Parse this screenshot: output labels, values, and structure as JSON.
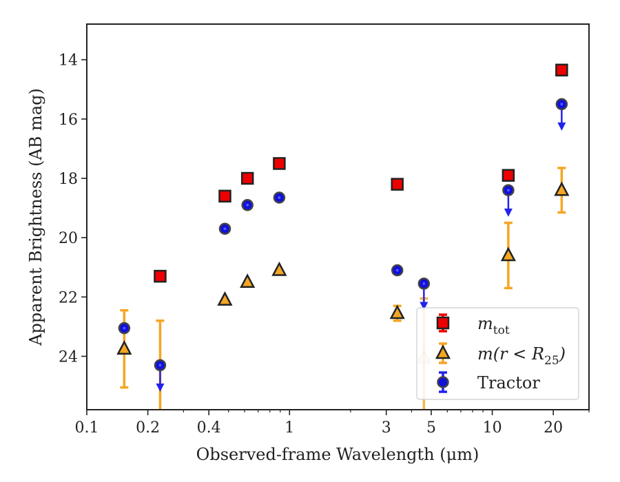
{
  "chart_data": {
    "type": "scatter",
    "xlabel": "Observed-frame Wavelength (μm)",
    "ylabel": "Apparent Brightness (AB mag)",
    "x_scale": "log",
    "xlim": [
      0.1,
      30
    ],
    "ylim": [
      25.8,
      12.8
    ],
    "y_inverted": true,
    "x_ticks": [
      0.1,
      0.2,
      0.4,
      1,
      3,
      5,
      10,
      20
    ],
    "x_tick_labels": [
      "0.1",
      "0.2",
      "0.4",
      "1",
      "3",
      "5",
      "10",
      "20"
    ],
    "y_ticks": [
      14,
      16,
      18,
      20,
      22,
      24
    ],
    "y_tick_labels": [
      "14",
      "16",
      "18",
      "20",
      "22",
      "24"
    ],
    "grid": false,
    "legend_position": "lower-right",
    "series": [
      {
        "name": "m_tot",
        "marker": "square",
        "color": "#ee0000",
        "points": [
          {
            "x": 0.23,
            "y": 21.3
          },
          {
            "x": 0.48,
            "y": 18.6
          },
          {
            "x": 0.62,
            "y": 18.0
          },
          {
            "x": 0.89,
            "y": 17.5
          },
          {
            "x": 3.4,
            "y": 18.2
          },
          {
            "x": 12.0,
            "y": 17.9
          },
          {
            "x": 22.0,
            "y": 14.35
          }
        ]
      },
      {
        "name": "m(r < R25)",
        "marker": "triangle",
        "color": "#f5a623",
        "points": [
          {
            "x": 0.153,
            "y": 23.75,
            "err": [
              1.3,
              1.3
            ]
          },
          {
            "x": 0.23,
            "y": 26.8,
            "err": [
              4.0,
              0
            ]
          },
          {
            "x": 0.48,
            "y": 22.1
          },
          {
            "x": 0.62,
            "y": 21.5
          },
          {
            "x": 0.89,
            "y": 21.1
          },
          {
            "x": 3.4,
            "y": 22.55,
            "err": [
              0.25,
              0.25
            ]
          },
          {
            "x": 4.6,
            "y": 24.05,
            "err": [
              2.0,
              2.0
            ],
            "faded": true
          },
          {
            "x": 12.0,
            "y": 20.6,
            "err": [
              1.1,
              1.1
            ]
          },
          {
            "x": 22.0,
            "y": 18.4,
            "err": [
              0.75,
              0.75
            ]
          }
        ]
      },
      {
        "name": "Tractor",
        "marker": "circle",
        "color": "#1010dd",
        "points": [
          {
            "x": 0.153,
            "y": 23.05,
            "err": [
              0.1,
              0.1
            ]
          },
          {
            "x": 0.23,
            "y": 24.3,
            "upper_limit": true
          },
          {
            "x": 0.48,
            "y": 19.7
          },
          {
            "x": 0.62,
            "y": 18.9
          },
          {
            "x": 0.89,
            "y": 18.65
          },
          {
            "x": 3.4,
            "y": 21.1
          },
          {
            "x": 4.6,
            "y": 21.55,
            "upper_limit": true
          },
          {
            "x": 12.0,
            "y": 18.4,
            "upper_limit": true
          },
          {
            "x": 22.0,
            "y": 15.5,
            "upper_limit": true
          }
        ]
      }
    ],
    "legend": {
      "entries": [
        {
          "label": "m",
          "sub": "tot",
          "series": 0
        },
        {
          "label": "m(r < R",
          "sub": "25",
          "suffix": ")",
          "series": 1
        },
        {
          "label": "Tractor",
          "series": 2
        }
      ]
    }
  }
}
